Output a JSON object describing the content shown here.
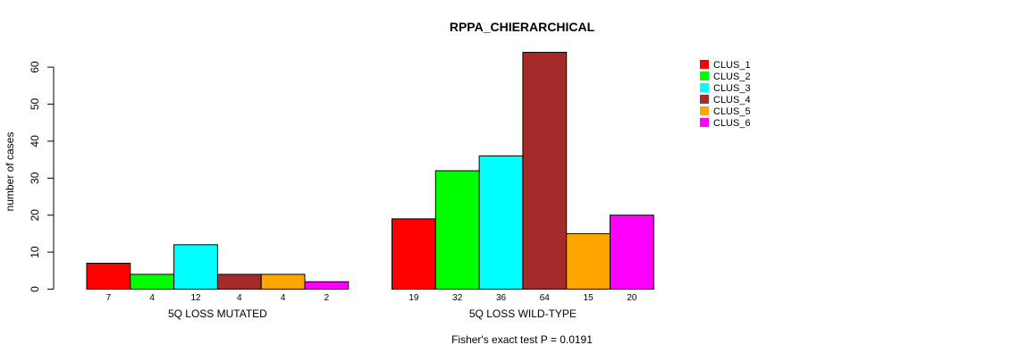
{
  "chart_data": {
    "type": "bar",
    "title": "RPPA_CHIERARCHICAL",
    "ylabel": "number of cases",
    "ylim": [
      0,
      60
    ],
    "yticks": [
      0,
      10,
      20,
      30,
      40,
      50,
      60
    ],
    "groups": [
      "5Q LOSS MUTATED",
      "5Q LOSS WILD-TYPE"
    ],
    "series": [
      {
        "name": "CLUS_1",
        "color": "#ff0000",
        "values": [
          7,
          19
        ]
      },
      {
        "name": "CLUS_2",
        "color": "#00ff00",
        "values": [
          4,
          32
        ]
      },
      {
        "name": "CLUS_3",
        "color": "#00ffff",
        "values": [
          12,
          36
        ]
      },
      {
        "name": "CLUS_4",
        "color": "#a52a2a",
        "values": [
          4,
          64
        ]
      },
      {
        "name": "CLUS_5",
        "color": "#ffa500",
        "values": [
          4,
          15
        ]
      },
      {
        "name": "CLUS_6",
        "color": "#ff00ff",
        "values": [
          2,
          20
        ]
      }
    ],
    "footnote": "Fisher's exact test P = 0.0191"
  }
}
